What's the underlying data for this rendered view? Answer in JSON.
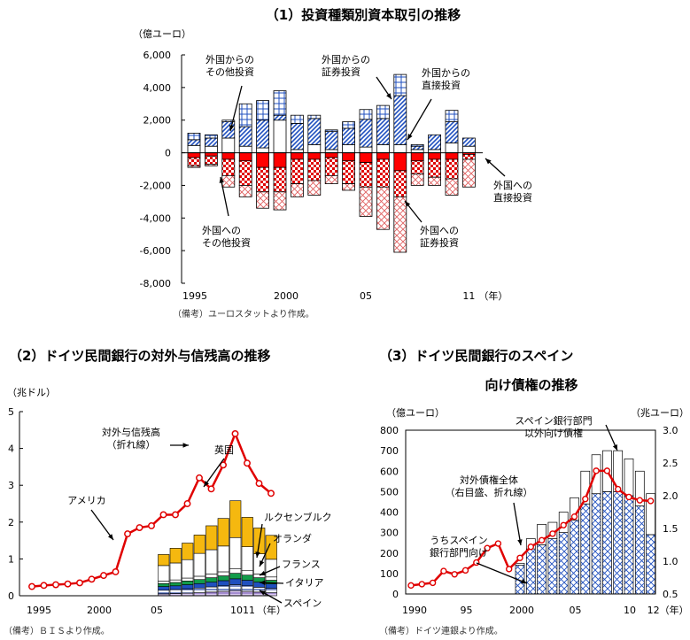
{
  "chart_data": [
    {
      "type": "bar",
      "title": "（1）投資種類別資本取引の推移",
      "unit": "（億ユーロ）",
      "ylim": [
        -8000,
        6000
      ],
      "yticks": [
        "6,000",
        "4,000",
        "2,000",
        "0",
        "-2,000",
        "-4,000",
        "-6,000",
        "-8,000"
      ],
      "x": [
        1995,
        1996,
        1997,
        1998,
        1999,
        2000,
        2001,
        2002,
        2003,
        2004,
        2005,
        2006,
        2007,
        2008,
        2009,
        2010,
        2011
      ],
      "xtick_labels": [
        "1995",
        "2000",
        "05",
        "11"
      ],
      "x_unit": "（年）",
      "series": [
        {
          "name": "外国からの直接投資",
          "values": [
            450,
            400,
            900,
            400,
            300,
            2000,
            200,
            500,
            200,
            500,
            350,
            500,
            500,
            200,
            200,
            600,
            400
          ]
        },
        {
          "name": "外国からの証券投資",
          "values": [
            350,
            500,
            1000,
            1200,
            1700,
            300,
            1600,
            1600,
            1100,
            1000,
            1700,
            1600,
            3000,
            200,
            900,
            1300,
            500
          ]
        },
        {
          "name": "外国からのその他投資",
          "values": [
            400,
            200,
            100,
            1400,
            1200,
            1500,
            500,
            200,
            100,
            400,
            600,
            800,
            1300,
            100,
            0,
            700,
            0
          ]
        },
        {
          "name": "外国への直接投資",
          "values": [
            -300,
            -200,
            -400,
            -500,
            -900,
            -900,
            -400,
            -400,
            -300,
            -500,
            -600,
            -400,
            -1100,
            -500,
            -400,
            -400,
            -100
          ]
        },
        {
          "name": "外国への証券投資",
          "values": [
            -500,
            -500,
            -1000,
            -1500,
            -1500,
            -1500,
            -1500,
            -1300,
            -1100,
            -1400,
            -1500,
            -1700,
            -1600,
            -800,
            -1100,
            -1200,
            -300
          ]
        },
        {
          "name": "外国へのその他投資",
          "values": [
            -100,
            -100,
            -700,
            -700,
            -1000,
            -1100,
            -800,
            -900,
            -500,
            -400,
            -1800,
            -2600,
            -3400,
            -700,
            -500,
            -1000,
            -1700
          ]
        }
      ],
      "annotations": [
        "外国からの\nその他投資",
        "外国からの\n証券投資",
        "外国からの\n直接投資",
        "外国への\n直接投資",
        "外国への\nその他投資",
        "外国への\n証券投資"
      ],
      "note": "（備考）ユーロスタットより作成。"
    },
    {
      "type": "bar",
      "title": "（2）ドイツ民間銀行の対外与信残高の推移",
      "unit": "（兆ドル）",
      "ylim": [
        0,
        5
      ],
      "yticks": [
        "5",
        "4",
        "3",
        "2",
        "1",
        "0"
      ],
      "xtick_labels": [
        "1995",
        "2000",
        "05",
        "1011",
        "（年）"
      ],
      "line": {
        "name": "対外与信残高\n（折れ線）",
        "x": [
          1990,
          1991,
          1992,
          1993,
          1994,
          1995,
          1996,
          1997,
          1998,
          1999,
          2000,
          2001,
          2002,
          2003,
          2004,
          2005,
          2006,
          2007,
          2008,
          2009,
          2010
        ],
        "values": [
          0.25,
          0.28,
          0.3,
          0.32,
          0.35,
          0.45,
          0.55,
          0.65,
          1.68,
          1.85,
          1.9,
          2.2,
          2.2,
          2.5,
          3.2,
          2.9,
          3.55,
          4.4,
          3.6,
          3.05,
          2.78
        ]
      },
      "stack_x": [
        2001,
        2002,
        2003,
        2004,
        2005,
        2006,
        2007,
        2008,
        2009,
        2010
      ],
      "series": [
        {
          "name": "スペイン",
          "values": [
            0.05,
            0.06,
            0.07,
            0.08,
            0.1,
            0.12,
            0.14,
            0.12,
            0.1,
            0.08
          ]
        },
        {
          "name": "イタリア",
          "values": [
            0.1,
            0.11,
            0.12,
            0.13,
            0.14,
            0.15,
            0.16,
            0.15,
            0.13,
            0.12
          ]
        },
        {
          "name": "フランス",
          "values": [
            0.1,
            0.1,
            0.11,
            0.12,
            0.13,
            0.14,
            0.16,
            0.15,
            0.14,
            0.12
          ]
        },
        {
          "name": "オランダ",
          "values": [
            0.08,
            0.09,
            0.1,
            0.11,
            0.12,
            0.13,
            0.15,
            0.14,
            0.12,
            0.1
          ]
        },
        {
          "name": "ルクセンブルク",
          "values": [
            0.07,
            0.07,
            0.08,
            0.09,
            0.1,
            0.11,
            0.12,
            0.12,
            0.1,
            0.09
          ]
        },
        {
          "name": "アメリカ",
          "values": [
            0.42,
            0.46,
            0.5,
            0.62,
            0.66,
            0.7,
            0.85,
            0.65,
            0.55,
            0.48
          ]
        },
        {
          "name": "英国",
          "values": [
            0.3,
            0.4,
            0.45,
            0.5,
            0.65,
            0.75,
            1.0,
            0.8,
            0.7,
            0.65
          ]
        }
      ],
      "annotations": [
        "対外与信残高\n（折れ線）",
        "英国",
        "アメリカ",
        "ルクセンブルク",
        "オランダ",
        "フランス",
        "イタリア",
        "スペイン"
      ],
      "note": "（備考）ＢＩＳより作成。"
    },
    {
      "type": "bar",
      "title": "（3）ドイツ民間銀行のスペイン\n向け債権の推移",
      "unit_left": "（億ユーロ）",
      "unit_right": "（兆ユーロ）",
      "ylim": [
        0,
        800
      ],
      "ylim_right": [
        0.5,
        3.0
      ],
      "yticks": [
        "800",
        "700",
        "600",
        "500",
        "400",
        "300",
        "200",
        "100",
        "0"
      ],
      "yticks_right": [
        "3.0",
        "2.5",
        "2.0",
        "1.5",
        "1.0",
        "0.5"
      ],
      "xtick_labels": [
        "1990",
        "95",
        "2000",
        "05",
        "10",
        "12",
        "（年）"
      ],
      "stack_x": [
        2000,
        2001,
        2002,
        2003,
        2004,
        2005,
        2006,
        2007,
        2008,
        2009,
        2010,
        2011,
        2012
      ],
      "series": [
        {
          "name": "うちスペイン\n銀行部門向け",
          "values": [
            140,
            220,
            240,
            270,
            300,
            360,
            440,
            490,
            500,
            500,
            480,
            430,
            290
          ]
        },
        {
          "name": "スペイン銀行部門\n以外向け債権",
          "values": [
            10,
            50,
            100,
            80,
            100,
            110,
            160,
            190,
            200,
            200,
            180,
            170,
            200
          ]
        }
      ],
      "line": {
        "name": "対外債権全体\n（右目盛、折れ線）",
        "x": [
          1990,
          1991,
          1992,
          1993,
          1994,
          1995,
          1996,
          1997,
          1998,
          1999,
          2000,
          2001,
          2002,
          2003,
          2004,
          2005,
          2006,
          2007,
          2008,
          2009,
          2010,
          2011,
          2012
        ],
        "values": [
          0.63,
          0.65,
          0.67,
          0.85,
          0.8,
          0.86,
          0.98,
          1.2,
          1.27,
          0.88,
          1.05,
          1.22,
          1.32,
          1.42,
          1.55,
          1.68,
          1.95,
          2.38,
          2.38,
          2.1,
          1.98,
          1.93,
          1.92
        ]
      },
      "annotations": [
        "スペイン銀行部門\n以外向け債権",
        "対外債権全体\n（右目盛、折れ線）",
        "うちスペイン\n銀行部門向け"
      ],
      "note": "（備考）ドイツ連銀より作成。"
    }
  ]
}
